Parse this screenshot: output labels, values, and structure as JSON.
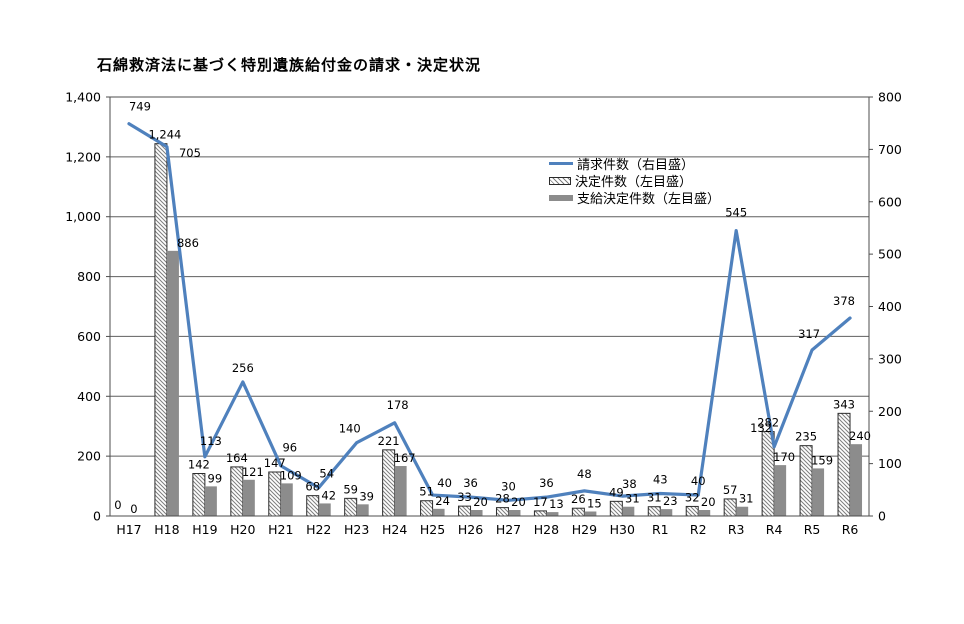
{
  "title": "石綿救済法に基づく特別遺族給付金の請求・決定状況",
  "colors": {
    "line_blue": "#4f81bd",
    "bar_gray": "#8c8c8c",
    "hatch_stroke": "#7e7e7e",
    "bar_border": "#2b2b2b",
    "grid": "#5f5f5f",
    "axis": "#4d4d4d",
    "text": "#000000",
    "background": "#ffffff"
  },
  "legend": {
    "entries": [
      {
        "label": "請求件数（右目盛）",
        "marker": "line"
      },
      {
        "label": "決定件数（左目盛）",
        "marker": "hatched-bar"
      },
      {
        "label": "支給決定件数（左目盛）",
        "marker": "gray-bar"
      }
    ]
  },
  "chart_data": {
    "type": "combo-bar-line",
    "title": "石綿救済法に基づく特別遺族給付金の請求・決定状況",
    "categories": [
      "H17",
      "H18",
      "H19",
      "H20",
      "H21",
      "H22",
      "H23",
      "H24",
      "H25",
      "H26",
      "H27",
      "H28",
      "H29",
      "H30",
      "R1",
      "R2",
      "R3",
      "R4",
      "R5",
      "R6"
    ],
    "series": [
      {
        "name": "請求件数（右目盛）",
        "type": "line",
        "axis": "right",
        "values": [
          749,
          705,
          113,
          256,
          96,
          54,
          140,
          178,
          40,
          36,
          30,
          36,
          48,
          38,
          43,
          40,
          545,
          132,
          317,
          378
        ]
      },
      {
        "name": "決定件数（左目盛）",
        "type": "bar",
        "style": "hatched",
        "axis": "left",
        "values": [
          0,
          1244,
          142,
          164,
          147,
          68,
          59,
          221,
          51,
          33,
          28,
          17,
          26,
          49,
          31,
          32,
          57,
          282,
          235,
          343
        ]
      },
      {
        "name": "支給決定件数（左目盛）",
        "type": "bar",
        "style": "solid",
        "axis": "left",
        "values": [
          0,
          886,
          99,
          121,
          109,
          42,
          39,
          167,
          24,
          20,
          20,
          13,
          15,
          31,
          23,
          20,
          31,
          170,
          159,
          240
        ]
      }
    ],
    "left_axis": {
      "max": 1400,
      "step": 200,
      "tick_labels": [
        "0",
        "200",
        "400",
        "600",
        "800",
        "1,000",
        "1,200",
        "1,400"
      ]
    },
    "right_axis": {
      "max": 800,
      "step": 100,
      "tick_labels": [
        "0",
        "100",
        "200",
        "300",
        "400",
        "500",
        "600",
        "700",
        "800"
      ]
    },
    "grid": true,
    "legend_position": "inside-upper-right",
    "data_labels": true
  }
}
